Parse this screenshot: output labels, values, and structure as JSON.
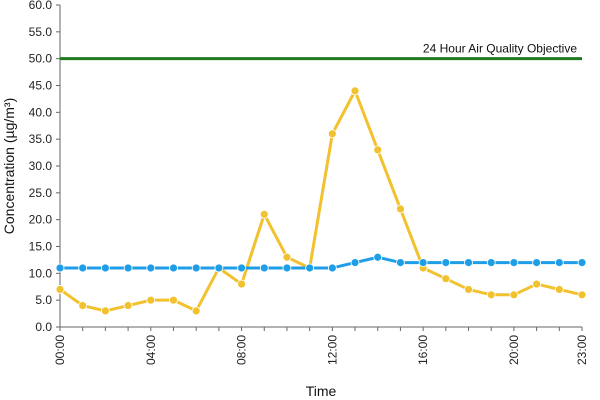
{
  "chart_data": {
    "type": "line",
    "xlabel": "Time",
    "ylabel": "Concentration (µg/m³)",
    "x_categories": [
      "00:00",
      "01:00",
      "02:00",
      "03:00",
      "04:00",
      "05:00",
      "06:00",
      "07:00",
      "08:00",
      "09:00",
      "10:00",
      "11:00",
      "12:00",
      "13:00",
      "14:00",
      "15:00",
      "16:00",
      "17:00",
      "18:00",
      "19:00",
      "20:00",
      "21:00",
      "22:00",
      "23:00"
    ],
    "x_tick_labels": [
      "00:00",
      "04:00",
      "08:00",
      "12:00",
      "16:00",
      "20:00",
      "23:00"
    ],
    "ylim": [
      0,
      60
    ],
    "y_ticks": [
      "0.0",
      "5.0",
      "10.0",
      "15.0",
      "20.0",
      "25.0",
      "30.0",
      "35.0",
      "40.0",
      "45.0",
      "50.0",
      "55.0",
      "60.0"
    ],
    "grid": false,
    "legend": "none",
    "series": [
      {
        "color": "#f2c12e",
        "values": [
          7,
          4,
          3,
          4,
          5,
          5,
          3,
          11,
          8,
          21,
          13,
          11,
          36,
          44,
          33,
          22,
          11,
          9,
          7,
          6,
          6,
          8,
          7,
          6
        ]
      },
      {
        "color": "#1f9ee8",
        "values": [
          11,
          11,
          11,
          11,
          11,
          11,
          11,
          11,
          11,
          11,
          11,
          11,
          11,
          12,
          13,
          12,
          12,
          12,
          12,
          12,
          12,
          12,
          12,
          12
        ]
      }
    ],
    "reference_line": {
      "label": "24 Hour Air Quality Objective",
      "value": 50,
      "color": "#1f7a1f"
    }
  }
}
